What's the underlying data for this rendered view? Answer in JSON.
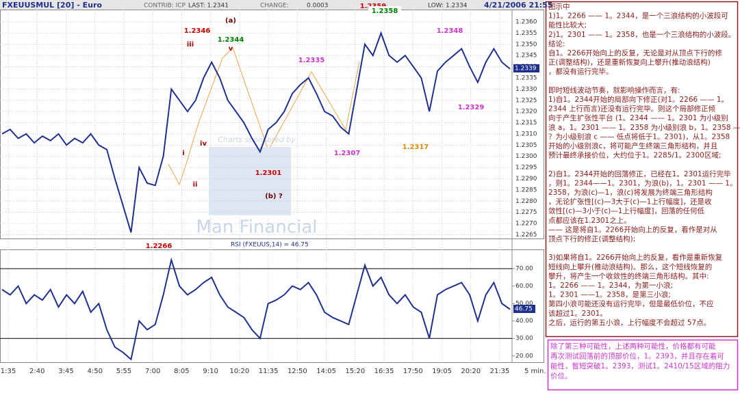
{
  "header": {
    "symbol": "FXEUUSMUL [20] - Euro",
    "contrib": "CONTRIB: ICP",
    "last": "LAST: 1.2341",
    "change_label": "CHANGE:",
    "change": "0.0003",
    "low": "LOW: 1.2334",
    "datetime": "4/21/2006 21:55"
  },
  "x_labels": [
    "1:35",
    "2:40",
    "3:45",
    "4:50",
    "5:55",
    "7:00",
    "8:05",
    "9:10",
    "10:20",
    "11:35",
    "12:50",
    "14:05",
    "15:20",
    "16:35",
    "17:50",
    "19:05",
    "20:20",
    "21:35"
  ],
  "x_unit": "5 min.",
  "chart_data": [
    {
      "type": "line",
      "name": "FXEUUSMUL",
      "color": "#1f2f8f",
      "values": [
        1.231,
        1.2312,
        1.2308,
        1.231,
        1.2306,
        1.2309,
        1.2307,
        1.231,
        1.2305,
        1.2308,
        1.2306,
        1.231,
        1.2305,
        1.2303,
        1.229,
        1.2278,
        1.2266,
        1.2295,
        1.2288,
        1.2287,
        1.23,
        1.233,
        1.2325,
        1.232,
        1.2325,
        1.2335,
        1.2342,
        1.2335,
        1.2325,
        1.232,
        1.2315,
        1.2308,
        1.2302,
        1.2312,
        1.2315,
        1.232,
        1.2328,
        1.2332,
        1.2335,
        1.2328,
        1.232,
        1.2318,
        1.2313,
        1.231,
        1.233,
        1.235,
        1.2345,
        1.2355,
        1.2345,
        1.2342,
        1.2345,
        1.234,
        1.2335,
        1.232,
        1.2338,
        1.2342,
        1.2345,
        1.2348,
        1.234,
        1.2333,
        1.2342,
        1.2348,
        1.2342,
        1.2339
      ],
      "ylim": [
        1.2263,
        1.23655
      ],
      "yticks": [
        {
          "value": 1.2265,
          "label": "1.2265"
        },
        {
          "value": 1.227,
          "label": "1.2270"
        },
        {
          "value": 1.2275,
          "label": "1.2275"
        },
        {
          "value": 1.228,
          "label": "1.2280"
        },
        {
          "value": 1.2285,
          "label": "1.2285"
        },
        {
          "value": 1.229,
          "label": "1.2290"
        },
        {
          "value": 1.2295,
          "label": "1.2295"
        },
        {
          "value": 1.23,
          "label": "1.2300"
        },
        {
          "value": 1.2305,
          "label": "1.2305"
        },
        {
          "value": 1.231,
          "label": "1.2310"
        },
        {
          "value": 1.2315,
          "label": "1.2315"
        },
        {
          "value": 1.232,
          "label": "1.2320"
        },
        {
          "value": 1.2325,
          "label": "1.2325"
        },
        {
          "value": 1.233,
          "label": "1.2330"
        },
        {
          "value": 1.2335,
          "label": "1.2335"
        },
        {
          "value": 1.234,
          "label": "1.2340"
        },
        {
          "value": 1.2345,
          "label": "1.2345"
        },
        {
          "value": 1.235,
          "label": "1.2350"
        },
        {
          "value": 1.2355,
          "label": "1.2355"
        },
        {
          "value": 1.236,
          "label": "1.2360"
        }
      ],
      "grid": true,
      "last_label": "1.2339",
      "watermark": [
        "Charts sponsored by",
        "Man Financial"
      ],
      "annotations": [
        {
          "text": "1.2346",
          "color": "#cc0000"
        },
        {
          "text": "iii",
          "color": "#aa0000"
        },
        {
          "text": "(a)",
          "color": "#660000"
        },
        {
          "text": "1.2344",
          "color": "#008000"
        },
        {
          "text": "v",
          "color": "#aa0000"
        },
        {
          "text": "1.2335",
          "color": "#cc33cc"
        },
        {
          "text": "1.2359",
          "color": "#cc0000"
        },
        {
          "text": "1.2358",
          "color": "#008000"
        },
        {
          "text": "1.2348",
          "color": "#cc33cc"
        },
        {
          "text": "1.2329",
          "color": "#cc33cc"
        },
        {
          "text": "1.2317",
          "color": "#e08a00"
        },
        {
          "text": "1.2307",
          "color": "#cc33cc"
        },
        {
          "text": "1.2301",
          "color": "#cc0000"
        },
        {
          "text": "(b) ?",
          "color": "#660000"
        },
        {
          "text": "iv",
          "color": "#aa0000"
        },
        {
          "text": "i",
          "color": "#aa0000"
        },
        {
          "text": "ii",
          "color": "#aa0000"
        },
        {
          "text": "1.2266",
          "color": "#cc0000"
        }
      ]
    },
    {
      "type": "line",
      "name": "RSI",
      "title": "RSI (FXEUUS,14) = 46.75",
      "color": "#1f2f8f",
      "values": [
        58,
        55,
        60,
        50,
        55,
        52,
        58,
        48,
        55,
        50,
        57,
        45,
        50,
        35,
        25,
        22,
        18,
        40,
        35,
        38,
        55,
        75,
        60,
        55,
        58,
        62,
        65,
        55,
        48,
        45,
        42,
        35,
        30,
        50,
        52,
        55,
        60,
        58,
        62,
        55,
        45,
        42,
        40,
        38,
        55,
        72,
        60,
        65,
        55,
        50,
        55,
        48,
        45,
        30,
        55,
        58,
        60,
        62,
        55,
        40,
        55,
        62,
        50,
        46.75
      ],
      "ylim": [
        16,
        81
      ],
      "yticks": [
        {
          "value": 20,
          "label": "20.00"
        },
        {
          "value": 30,
          "label": "30.00"
        },
        {
          "value": 40,
          "label": "40.00"
        },
        {
          "value": 50,
          "label": "50.00"
        },
        {
          "value": 60,
          "label": "60.00"
        },
        {
          "value": 70,
          "label": "70.00"
        }
      ],
      "bands": [
        30,
        70
      ],
      "last_label": "46.75"
    }
  ],
  "notes": {
    "paragraphs": [
      [
        "图示中",
        "1)1。2266 —— 1。2344，是一个三浪结构的小波段可",
        "能性比较大;",
        "2)1。2301 —— 1。2358，也是一个三浪结构的小波段。",
        "结论:",
        "自1。2266开始向上的反复，无论是对从顶点下行的修",
        "正(调整结构)，还是重新恢复向上攀升(推动浪结构)",
        "，都没有运行完毕。"
      ],
      [
        "即时短线波动节奏，就影响操作而言，有:",
        "1)自1。2344开始的局部向下修正(对1。2266 —— 1。",
        "2344 上行而言)还没有运行完毕。则这个局部修正倾",
        "向于产生扩张性平台 (1。2344 —— 1。2301 为小级别",
        "浪 a，1。2301 —— 1。2358 为小级别浪 b，1。2358 ——",
        "？为小级别浪 c —— 低点将低于1。2301)，从1。2358",
        "开始的小级别浪c，将可能产生终端三角形结构，并且",
        "预计最终承接价位，大约位于1。2285/1。2300区域;"
      ],
      [
        "2)自1。2344开始的回落修正，已经在1。2301运行完毕",
        "，则1。2344——1。2301，为浪(b)，1。2301 —— 1。",
        "2358，为浪(c)—1，浪(c)将发展为终端三角形结构",
        "，无论扩张性[(c)—3大于(c)—1上行幅度]，还是收",
        "敛性[(c)—3小于(c)—1上行幅度]，回落的任何低",
        "点都应该在1.2301之上。",
        "—— 这是将自1。2266开始向上的反复，看作是对从",
        "顶点下行的修正(调整结构);"
      ],
      [
        "3)如果将自1。2266开始向上的反复，看作是重新恢复",
        "短线向上攀升(推动浪结构)。那么，这个短线恢复的",
        "攀升，将产生一个收敛性的终端三角形结构。其中:",
        "1。2266 —— 1。2344，为第一小浪;",
        "1。2301 ——1。2358，是第三小浪;",
        "第四小浪可能还没有运行完毕，但是最低价位，不应",
        "该超过1。2301。",
        "之后，运行的第五小浪，上行幅度不会超过 57点。"
      ]
    ],
    "footer": [
      "除了第三种可能性，上述两种可能性，价格都有可能",
      "再次测试回落前的顶部价位，1。2393，并且存在着可",
      "能性，暂短突破1。2393，测试1。2410/15区域的阻力",
      "价位。"
    ]
  }
}
